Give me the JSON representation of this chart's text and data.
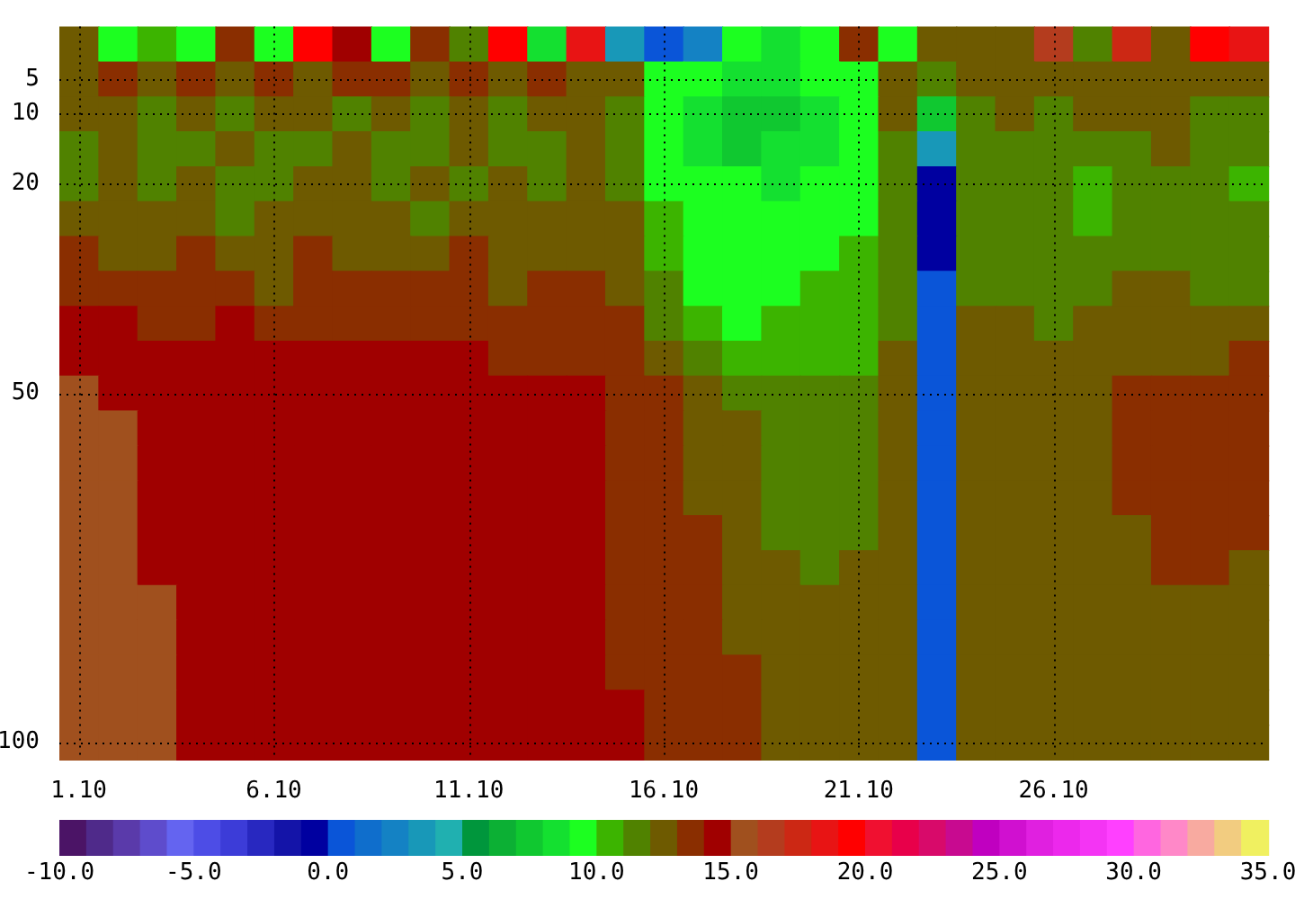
{
  "chart_data": [
    {
      "type": "heatmap",
      "categories": [
        "1.10",
        null,
        null,
        null,
        null,
        "6.10",
        null,
        null,
        null,
        null,
        "11.10",
        null,
        null,
        null,
        null,
        "16.10",
        null,
        null,
        null,
        null,
        "21.10",
        null,
        null,
        null,
        null,
        "26.10",
        null,
        null,
        null,
        null,
        null
      ],
      "y_categories": [
        null,
        "5",
        "10",
        null,
        "20",
        null,
        null,
        null,
        null,
        null,
        "50",
        null,
        null,
        null,
        null,
        null,
        null,
        null,
        null,
        null,
        "100"
      ],
      "cells": [
        [
          12.5,
          9.5,
          10.5,
          9.5,
          13.5,
          9.5,
          19.5,
          14.5,
          9.5,
          13.5,
          11.5,
          19.5,
          8.5,
          18.5,
          3.5,
          0.5,
          2.5,
          9.5,
          8.5,
          9.5,
          13.5,
          9.5,
          12.5,
          12.5,
          12.5,
          16.5,
          11.5,
          17.5,
          12.5,
          19.5,
          18.5
        ],
        [
          12.5,
          13.5,
          12.5,
          13.5,
          12.5,
          13.5,
          12.5,
          13.5,
          13.5,
          12.5,
          13.5,
          12.5,
          13.5,
          12.5,
          12.5,
          9.5,
          9.5,
          8.5,
          8.5,
          9.5,
          9.5,
          12.5,
          11.5,
          12.5,
          12.5,
          12.5,
          12.5,
          12.5,
          12.5,
          12.5,
          12.5
        ],
        [
          12.5,
          12.5,
          11.5,
          12.5,
          11.5,
          12.5,
          12.5,
          11.5,
          12.5,
          11.5,
          12.5,
          11.5,
          12.5,
          12.5,
          11.5,
          9.5,
          8.5,
          7.5,
          7.5,
          8.5,
          9.5,
          12.5,
          7.5,
          11.5,
          12.5,
          11.5,
          12.5,
          12.5,
          12.5,
          11.5,
          11.5
        ],
        [
          11.5,
          12.5,
          11.5,
          11.5,
          12.5,
          11.5,
          11.5,
          12.5,
          11.5,
          11.5,
          12.5,
          11.5,
          11.5,
          12.5,
          11.5,
          9.5,
          8.5,
          7.5,
          8.5,
          8.5,
          9.5,
          11.5,
          3.5,
          11.5,
          11.5,
          11.5,
          11.5,
          11.5,
          12.5,
          11.5,
          11.5
        ],
        [
          11.5,
          12.5,
          11.5,
          12.5,
          11.5,
          11.5,
          12.5,
          12.5,
          11.5,
          12.5,
          11.5,
          12.5,
          11.5,
          12.5,
          11.5,
          9.5,
          9.5,
          9.5,
          8.5,
          9.5,
          9.5,
          11.5,
          -0.5,
          11.5,
          11.5,
          11.5,
          10.5,
          11.5,
          11.5,
          11.5,
          10.5
        ],
        [
          12.5,
          12.5,
          12.5,
          12.5,
          11.5,
          12.5,
          12.5,
          12.5,
          12.5,
          11.5,
          12.5,
          12.5,
          12.5,
          12.5,
          12.5,
          10.5,
          9.5,
          9.5,
          9.5,
          9.5,
          9.5,
          11.5,
          -0.5,
          11.5,
          11.5,
          11.5,
          10.5,
          11.5,
          11.5,
          11.5,
          11.5
        ],
        [
          13.5,
          12.5,
          12.5,
          13.5,
          12.5,
          12.5,
          13.5,
          12.5,
          12.5,
          12.5,
          13.5,
          12.5,
          12.5,
          12.5,
          12.5,
          10.5,
          9.5,
          9.5,
          9.5,
          9.5,
          10.5,
          11.5,
          -0.5,
          11.5,
          11.5,
          11.5,
          11.5,
          11.5,
          11.5,
          11.5,
          11.5
        ],
        [
          13.5,
          13.5,
          13.5,
          13.5,
          13.5,
          12.5,
          13.5,
          13.5,
          13.5,
          13.5,
          13.5,
          12.5,
          13.5,
          13.5,
          12.5,
          11.5,
          9.5,
          9.5,
          9.5,
          10.5,
          10.5,
          11.5,
          0.5,
          11.5,
          11.5,
          11.5,
          11.5,
          12.5,
          12.5,
          11.5,
          11.5
        ],
        [
          14.5,
          14.5,
          13.5,
          13.5,
          14.5,
          13.5,
          13.5,
          13.5,
          13.5,
          13.5,
          13.5,
          13.5,
          13.5,
          13.5,
          13.5,
          11.5,
          10.5,
          9.5,
          10.5,
          10.5,
          10.5,
          11.5,
          0.5,
          12.5,
          12.5,
          11.5,
          12.5,
          12.5,
          12.5,
          12.5,
          12.5
        ],
        [
          14.5,
          14.5,
          14.5,
          14.5,
          14.5,
          14.5,
          14.5,
          14.5,
          14.5,
          14.5,
          14.5,
          13.5,
          13.5,
          13.5,
          13.5,
          12.5,
          11.5,
          10.5,
          10.5,
          10.5,
          10.5,
          12.5,
          0.5,
          12.5,
          12.5,
          12.5,
          12.5,
          12.5,
          12.5,
          12.5,
          13.5
        ],
        [
          15.5,
          14.5,
          14.5,
          14.5,
          14.5,
          14.5,
          14.5,
          14.5,
          14.5,
          14.5,
          14.5,
          14.5,
          14.5,
          14.5,
          13.5,
          13.5,
          12.5,
          11.5,
          11.5,
          11.5,
          11.5,
          12.5,
          0.5,
          12.5,
          12.5,
          12.5,
          12.5,
          13.5,
          13.5,
          13.5,
          13.5
        ],
        [
          15.5,
          15.5,
          14.5,
          14.5,
          14.5,
          14.5,
          14.5,
          14.5,
          14.5,
          14.5,
          14.5,
          14.5,
          14.5,
          14.5,
          13.5,
          13.5,
          12.5,
          12.5,
          11.5,
          11.5,
          11.5,
          12.5,
          0.5,
          12.5,
          12.5,
          12.5,
          12.5,
          13.5,
          13.5,
          13.5,
          13.5
        ],
        [
          15.5,
          15.5,
          14.5,
          14.5,
          14.5,
          14.5,
          14.5,
          14.5,
          14.5,
          14.5,
          14.5,
          14.5,
          14.5,
          14.5,
          13.5,
          13.5,
          12.5,
          12.5,
          11.5,
          11.5,
          11.5,
          12.5,
          0.5,
          12.5,
          12.5,
          12.5,
          12.5,
          13.5,
          13.5,
          13.5,
          13.5
        ],
        [
          15.5,
          15.5,
          14.5,
          14.5,
          14.5,
          14.5,
          14.5,
          14.5,
          14.5,
          14.5,
          14.5,
          14.5,
          14.5,
          14.5,
          13.5,
          13.5,
          12.5,
          12.5,
          11.5,
          11.5,
          11.5,
          12.5,
          0.5,
          12.5,
          12.5,
          12.5,
          12.5,
          13.5,
          13.5,
          13.5,
          13.5
        ],
        [
          15.5,
          15.5,
          14.5,
          14.5,
          14.5,
          14.5,
          14.5,
          14.5,
          14.5,
          14.5,
          14.5,
          14.5,
          14.5,
          14.5,
          13.5,
          13.5,
          13.5,
          12.5,
          11.5,
          11.5,
          11.5,
          12.5,
          0.5,
          12.5,
          12.5,
          12.5,
          12.5,
          12.5,
          13.5,
          13.5,
          13.5
        ],
        [
          15.5,
          15.5,
          14.5,
          14.5,
          14.5,
          14.5,
          14.5,
          14.5,
          14.5,
          14.5,
          14.5,
          14.5,
          14.5,
          14.5,
          13.5,
          13.5,
          13.5,
          12.5,
          12.5,
          11.5,
          12.5,
          12.5,
          0.5,
          12.5,
          12.5,
          12.5,
          12.5,
          12.5,
          13.5,
          13.5,
          12.5
        ],
        [
          15.5,
          15.5,
          15.5,
          14.5,
          14.5,
          14.5,
          14.5,
          14.5,
          14.5,
          14.5,
          14.5,
          14.5,
          14.5,
          14.5,
          13.5,
          13.5,
          13.5,
          12.5,
          12.5,
          12.5,
          12.5,
          12.5,
          0.5,
          12.5,
          12.5,
          12.5,
          12.5,
          12.5,
          12.5,
          12.5,
          12.5
        ],
        [
          15.5,
          15.5,
          15.5,
          14.5,
          14.5,
          14.5,
          14.5,
          14.5,
          14.5,
          14.5,
          14.5,
          14.5,
          14.5,
          14.5,
          13.5,
          13.5,
          13.5,
          12.5,
          12.5,
          12.5,
          12.5,
          12.5,
          0.5,
          12.5,
          12.5,
          12.5,
          12.5,
          12.5,
          12.5,
          12.5,
          12.5
        ],
        [
          15.5,
          15.5,
          15.5,
          14.5,
          14.5,
          14.5,
          14.5,
          14.5,
          14.5,
          14.5,
          14.5,
          14.5,
          14.5,
          14.5,
          13.5,
          13.5,
          13.5,
          13.5,
          12.5,
          12.5,
          12.5,
          12.5,
          0.5,
          12.5,
          12.5,
          12.5,
          12.5,
          12.5,
          12.5,
          12.5,
          12.5
        ],
        [
          15.5,
          15.5,
          15.5,
          14.5,
          14.5,
          14.5,
          14.5,
          14.5,
          14.5,
          14.5,
          14.5,
          14.5,
          14.5,
          14.5,
          14.5,
          13.5,
          13.5,
          13.5,
          12.5,
          12.5,
          12.5,
          12.5,
          0.5,
          12.5,
          12.5,
          12.5,
          12.5,
          12.5,
          12.5,
          12.5,
          12.5
        ],
        [
          15.5,
          15.5,
          15.5,
          14.5,
          14.5,
          14.5,
          14.5,
          14.5,
          14.5,
          14.5,
          14.5,
          14.5,
          14.5,
          14.5,
          14.5,
          13.5,
          13.5,
          13.5,
          12.5,
          12.5,
          12.5,
          12.5,
          0.5,
          12.5,
          12.5,
          12.5,
          12.5,
          12.5,
          12.5,
          12.5,
          12.5
        ]
      ],
      "clim": [
        -10,
        35
      ],
      "cticks": [
        {
          "value": -10,
          "label": "-10.0"
        },
        {
          "value": -5,
          "label": "-5.0"
        },
        {
          "value": 0,
          "label": "0.0"
        },
        {
          "value": 5,
          "label": "5.0"
        },
        {
          "value": 10,
          "label": "10.0"
        },
        {
          "value": 15,
          "label": "15.0"
        },
        {
          "value": 20,
          "label": "20.0"
        },
        {
          "value": 25,
          "label": "25.0"
        },
        {
          "value": 30,
          "label": "30.0"
        },
        {
          "value": 35,
          "label": "35.0"
        }
      ],
      "colors": [
        "#4b1466",
        "#4f2a8a",
        "#5a3aaa",
        "#5e4ccc",
        "#6464f0",
        "#4d4de6",
        "#3c3cd8",
        "#2828c0",
        "#1414a8",
        "#0000a0",
        "#0a55d8",
        "#0f6ecc",
        "#1482c4",
        "#1898b8",
        "#20b0b0",
        "#00963c",
        "#0cb034",
        "#10c830",
        "#14e030",
        "#1cff20",
        "#3cb400",
        "#508200",
        "#6e5a00",
        "#8a2e00",
        "#a00000",
        "#a0501e",
        "#b43c1e",
        "#cc2814",
        "#e81414",
        "#ff0000",
        "#f01030",
        "#e8004a",
        "#d80a6a",
        "#c80a90",
        "#c000c0",
        "#d010d0",
        "#e020e0",
        "#ec28ec",
        "#f434f4",
        "#ff40ff",
        "#ff66e0",
        "#ff88c8",
        "#f8aaa0",
        "#f2cc80",
        "#f0f060"
      ],
      "grid": true
    }
  ]
}
